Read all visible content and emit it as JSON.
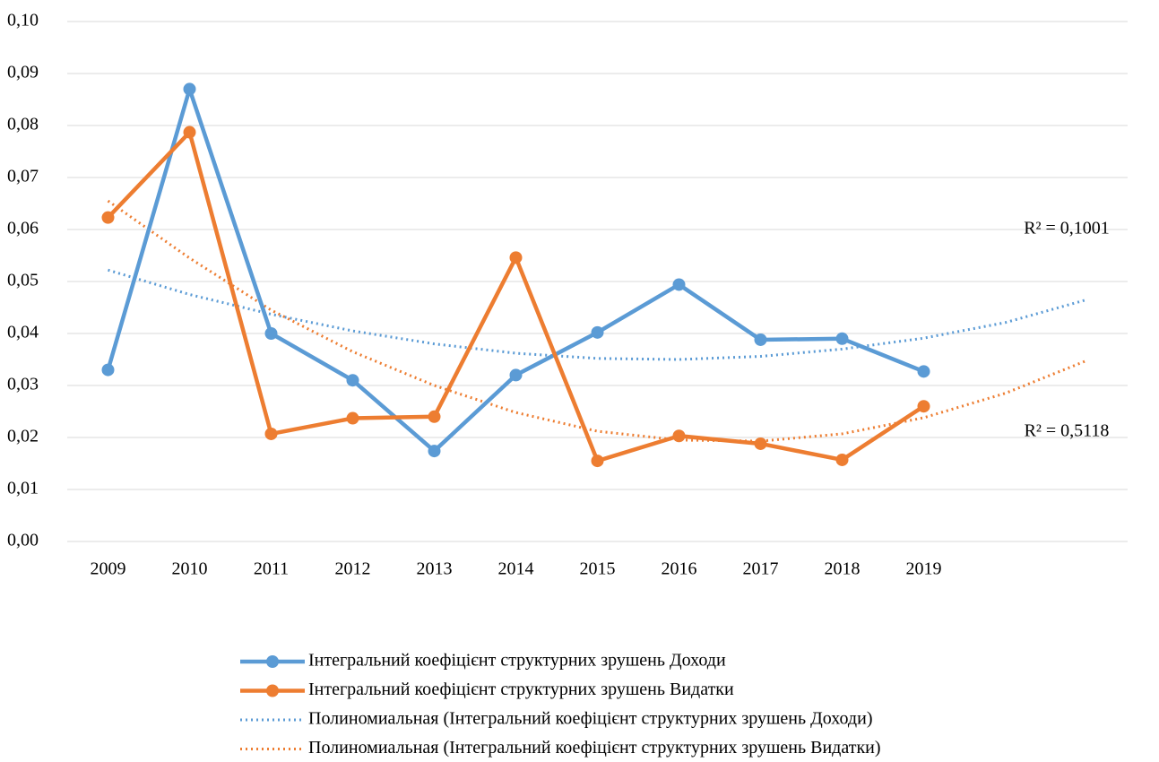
{
  "chart_data": {
    "type": "line",
    "categories": [
      "2009",
      "2010",
      "2011",
      "2012",
      "2013",
      "2014",
      "2015",
      "2016",
      "2017",
      "2018",
      "2019",
      null,
      null
    ],
    "series": [
      {
        "name": "Інтегральний коефіцієнт структурних зрушень  Доходи",
        "color": "#5b9bd5",
        "line_style": "solid",
        "marker": "circle",
        "values": [
          0.033,
          0.087,
          0.04,
          0.031,
          0.0174,
          0.032,
          0.0402,
          0.0494,
          0.0388,
          0.039,
          0.0327,
          null,
          null
        ]
      },
      {
        "name": "Інтегральний коефіцієнт структурних зрушень  Видатки",
        "color": "#ed7d31",
        "line_style": "solid",
        "marker": "circle",
        "values": [
          0.0623,
          0.0787,
          0.0207,
          0.0237,
          0.024,
          0.0546,
          0.0155,
          0.0203,
          0.0188,
          0.0157,
          0.026,
          null,
          null
        ]
      },
      {
        "name": "Полиномиальная (Інтегральний коефіцієнт структурних зрушень  Доходи)",
        "color": "#5b9bd5",
        "line_style": "dotted",
        "marker": "none",
        "values": [
          0.0522,
          0.0475,
          0.0437,
          0.0405,
          0.038,
          0.0362,
          0.0352,
          0.035,
          0.0356,
          0.037,
          0.0391,
          0.0421,
          0.0465
        ]
      },
      {
        "name": "Полиномиальная (Інтегральний коефіцієнт структурних зрушень  Видатки)",
        "color": "#ed7d31",
        "line_style": "dotted",
        "marker": "none",
        "values": [
          0.0655,
          0.0545,
          0.0445,
          0.0365,
          0.03,
          0.0248,
          0.0212,
          0.0195,
          0.0193,
          0.0207,
          0.0238,
          0.0285,
          0.0348
        ]
      }
    ],
    "annotations": [
      {
        "text": "R² = 0,1001",
        "series": 2
      },
      {
        "text": "R² = 0,5118",
        "series": 3
      }
    ],
    "ylim": [
      0,
      0.1
    ],
    "yticks": [
      {
        "value": 0,
        "label": "0,00"
      },
      {
        "value": 0.01,
        "label": "0,01"
      },
      {
        "value": 0.02,
        "label": "0,02"
      },
      {
        "value": 0.03,
        "label": "0,03"
      },
      {
        "value": 0.04,
        "label": "0,04"
      },
      {
        "value": 0.05,
        "label": "0,05"
      },
      {
        "value": 0.06,
        "label": "0,06"
      },
      {
        "value": 0.07,
        "label": "0,07"
      },
      {
        "value": 0.08,
        "label": "0,08"
      },
      {
        "value": 0.09,
        "label": "0,09"
      },
      {
        "value": 0.1,
        "label": "0,10"
      }
    ],
    "grid": true,
    "legend": "bottom"
  }
}
